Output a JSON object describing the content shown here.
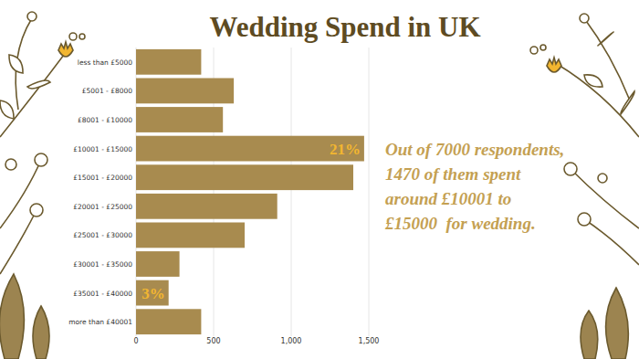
{
  "chart_data": {
    "type": "bar",
    "title": "Wedding Spend in UK",
    "orientation": "horizontal",
    "grid": true,
    "color": "#a88b4f",
    "categories": [
      "less than £5000",
      "£5001 - £8000",
      "£8001 - £10000",
      "£10001 - £15000",
      "£15001 - £20000",
      "£20001 - £25000",
      "£25001 - £30000",
      "£30001 - £35000",
      "£35001 - £40000",
      "more than £40001"
    ],
    "values": [
      420,
      630,
      560,
      1470,
      1400,
      910,
      700,
      280,
      210,
      420
    ],
    "xlim": [
      0,
      1500
    ],
    "xticks": [
      0,
      500,
      {
        "value": 1000,
        "label": "1,000"
      },
      {
        "value": 1500,
        "label": "1,500"
      }
    ],
    "annotations": [
      {
        "text": "21%",
        "category": "£10001 - £15000"
      },
      {
        "text": "3%",
        "category": "£35001 - £40000"
      }
    ],
    "text_box": [
      "Out of 7000 respondents,",
      "1470 of them spent",
      "around £10001 to",
      "£15000  for wedding."
    ]
  }
}
